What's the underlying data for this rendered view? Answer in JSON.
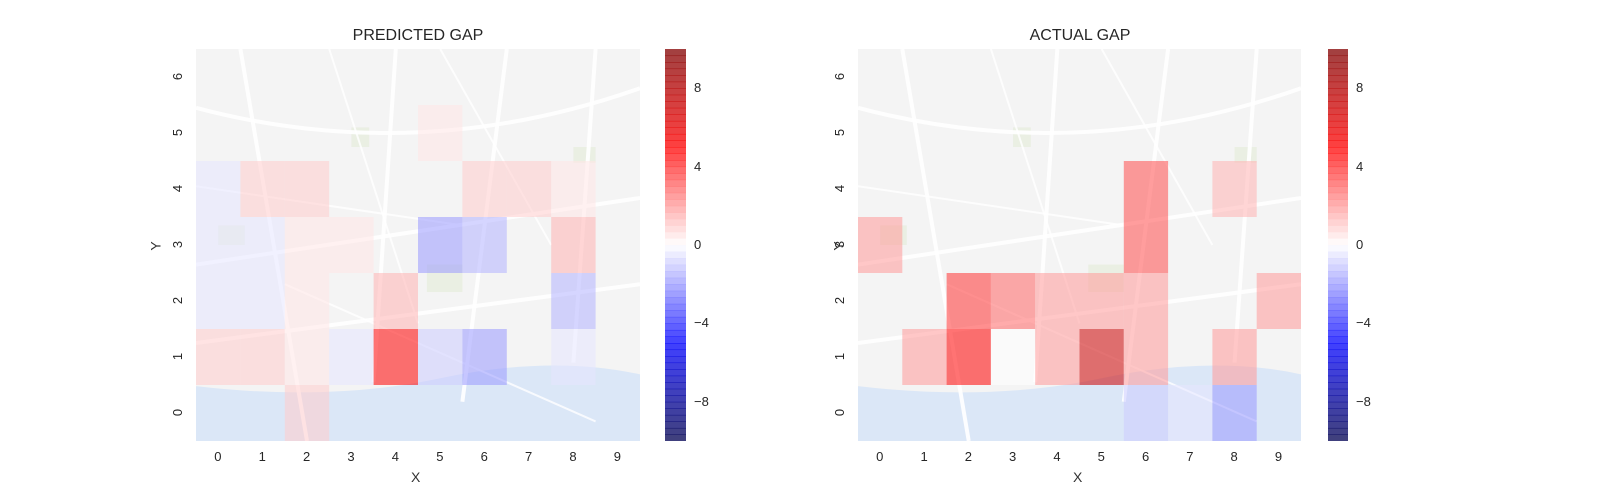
{
  "chart_data": [
    {
      "type": "heatmap",
      "title": "PREDICTED GAP",
      "xlabel": "X",
      "ylabel": "Y",
      "x_ticks": [
        "0",
        "1",
        "2",
        "3",
        "4",
        "5",
        "6",
        "7",
        "8",
        "9"
      ],
      "y_ticks": [
        "0",
        "1",
        "2",
        "3",
        "4",
        "5",
        "6"
      ],
      "colorbar": {
        "ticks": [
          "8",
          "4",
          "0",
          "−4",
          "−8"
        ],
        "tick_values": [
          8,
          4,
          0,
          -4,
          -8
        ],
        "range": [
          -10,
          10
        ],
        "colormap": "seismic"
      },
      "cells": [
        {
          "x": 0,
          "y": 1,
          "value": 1
        },
        {
          "x": 1,
          "y": 1,
          "value": 1
        },
        {
          "x": 2,
          "y": 1,
          "value": 0.5
        },
        {
          "x": 3,
          "y": 1,
          "value": -0.5
        },
        {
          "x": 4,
          "y": 1,
          "value": 5
        },
        {
          "x": 5,
          "y": 1,
          "value": -1
        },
        {
          "x": 6,
          "y": 1,
          "value": -2
        },
        {
          "x": 8,
          "y": 1,
          "value": -0.5
        },
        {
          "x": 0,
          "y": 2,
          "value": -0.5
        },
        {
          "x": 1,
          "y": 2,
          "value": -0.5
        },
        {
          "x": 2,
          "y": 2,
          "value": 0.5
        },
        {
          "x": 4,
          "y": 2,
          "value": 1.5
        },
        {
          "x": 8,
          "y": 2,
          "value": -1.5
        },
        {
          "x": 0,
          "y": 3,
          "value": -0.5
        },
        {
          "x": 1,
          "y": 3,
          "value": -0.5
        },
        {
          "x": 2,
          "y": 3,
          "value": 0.5
        },
        {
          "x": 3,
          "y": 3,
          "value": 0.5
        },
        {
          "x": 5,
          "y": 3,
          "value": -2
        },
        {
          "x": 6,
          "y": 3,
          "value": -1.5
        },
        {
          "x": 8,
          "y": 3,
          "value": 1.5
        },
        {
          "x": 0,
          "y": 4,
          "value": -0.5
        },
        {
          "x": 1,
          "y": 4,
          "value": 1
        },
        {
          "x": 2,
          "y": 4,
          "value": 1
        },
        {
          "x": 6,
          "y": 4,
          "value": 1
        },
        {
          "x": 7,
          "y": 4,
          "value": 1
        },
        {
          "x": 8,
          "y": 4,
          "value": 0.5
        },
        {
          "x": 5,
          "y": 5,
          "value": 0.5
        },
        {
          "x": 2,
          "y": 0,
          "value": 1
        }
      ]
    },
    {
      "type": "heatmap",
      "title": "ACTUAL GAP",
      "xlabel": "X",
      "ylabel": "Y",
      "x_ticks": [
        "0",
        "1",
        "2",
        "3",
        "4",
        "5",
        "6",
        "7",
        "8",
        "9"
      ],
      "y_ticks": [
        "0",
        "1",
        "2",
        "3",
        "4",
        "5",
        "6"
      ],
      "colorbar": {
        "ticks": [
          "8",
          "4",
          "0",
          "−4",
          "−8"
        ],
        "tick_values": [
          8,
          4,
          0,
          -4,
          -8
        ],
        "range": [
          -10,
          10
        ],
        "colormap": "seismic"
      },
      "cells": [
        {
          "x": 0,
          "y": 3,
          "value": 2
        },
        {
          "x": 1,
          "y": 1,
          "value": 2
        },
        {
          "x": 2,
          "y": 1,
          "value": 5
        },
        {
          "x": 3,
          "y": 1,
          "value": 0
        },
        {
          "x": 4,
          "y": 1,
          "value": 2
        },
        {
          "x": 5,
          "y": 1,
          "value": 7
        },
        {
          "x": 6,
          "y": 1,
          "value": 2
        },
        {
          "x": 8,
          "y": 1,
          "value": 2
        },
        {
          "x": 2,
          "y": 2,
          "value": 4
        },
        {
          "x": 3,
          "y": 2,
          "value": 3
        },
        {
          "x": 4,
          "y": 2,
          "value": 2
        },
        {
          "x": 5,
          "y": 2,
          "value": 2
        },
        {
          "x": 6,
          "y": 2,
          "value": 2
        },
        {
          "x": 9,
          "y": 2,
          "value": 2
        },
        {
          "x": 6,
          "y": 3,
          "value": 3.5
        },
        {
          "x": 6,
          "y": 4,
          "value": 3.5
        },
        {
          "x": 8,
          "y": 4,
          "value": 1.5
        },
        {
          "x": 6,
          "y": 0,
          "value": -1
        },
        {
          "x": 7,
          "y": 0,
          "value": -0.5
        },
        {
          "x": 8,
          "y": 0,
          "value": -2
        }
      ]
    }
  ]
}
